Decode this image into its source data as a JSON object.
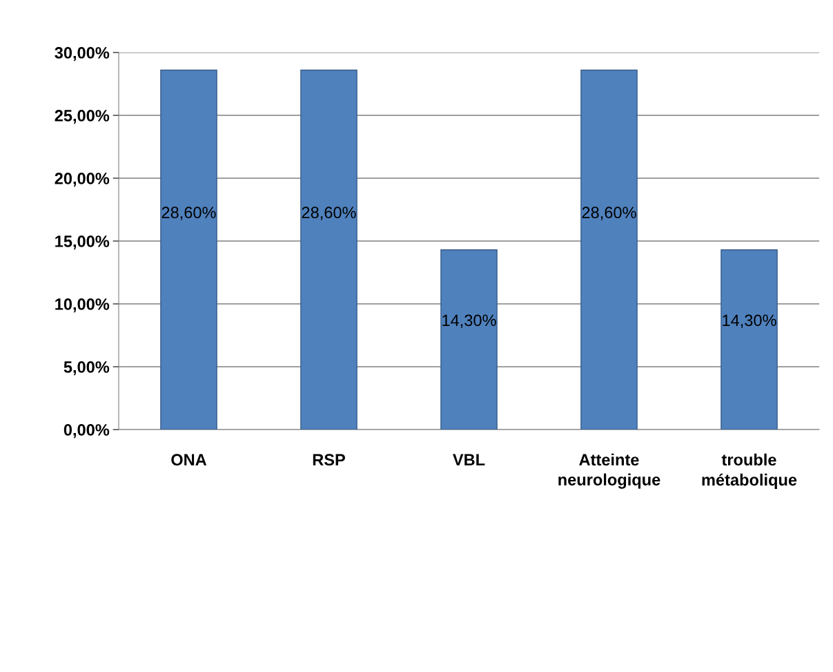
{
  "chart_data": {
    "type": "bar",
    "categories": [
      "ONA",
      "RSP",
      "VBL",
      "Atteinte neurologique",
      "trouble métabolique"
    ],
    "values": [
      28.6,
      28.6,
      14.3,
      28.6,
      14.3
    ],
    "value_labels": [
      "28,60%",
      "28,60%",
      "14,30%",
      "28,60%",
      "14,30%"
    ],
    "color": "#4f81bd",
    "ylim": [
      0,
      30
    ],
    "yticks": [
      {
        "value": 0,
        "label": "0,00%"
      },
      {
        "value": 5,
        "label": "5,00%"
      },
      {
        "value": 10,
        "label": "10,00%"
      },
      {
        "value": 15,
        "label": "15,00%"
      },
      {
        "value": 20,
        "label": "20,00%"
      },
      {
        "value": 25,
        "label": "25,00%"
      },
      {
        "value": 30,
        "label": "30,00%"
      }
    ],
    "grid": "y"
  }
}
